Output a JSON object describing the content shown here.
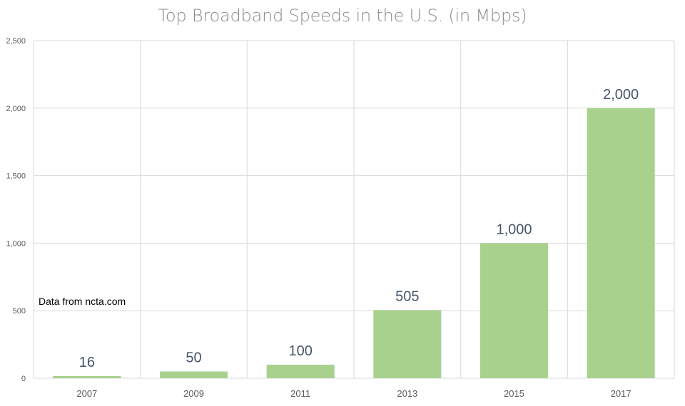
{
  "chart_data": {
    "type": "bar",
    "title": "Top Broadband Speeds in the U.S. (in Mbps)",
    "categories": [
      "2007",
      "2009",
      "2011",
      "2013",
      "2015",
      "2017"
    ],
    "values": [
      16,
      50,
      100,
      505,
      1000,
      2000
    ],
    "data_labels": [
      "16",
      "50",
      "100",
      "505",
      "1,000",
      "2,000"
    ],
    "y_ticks": [
      "0",
      "500",
      "1,000",
      "1,500",
      "2,000",
      "2,500"
    ],
    "ylim": [
      0,
      2500
    ],
    "xlabel": "",
    "ylabel": "",
    "grid": true,
    "annotation": "Data from ncta.com",
    "colors": {
      "bar": "#a9d18e",
      "grid": "#d9d9d9",
      "data_label": "#44546a",
      "title": "#8a8a8a"
    }
  }
}
